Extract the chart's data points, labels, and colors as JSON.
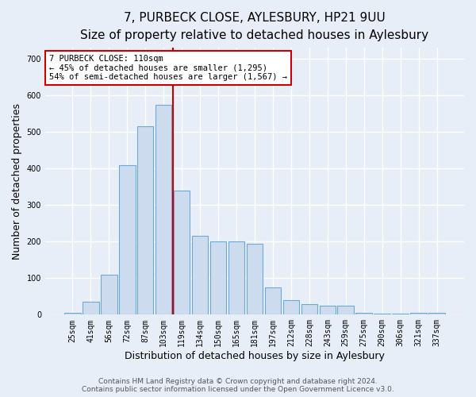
{
  "title_line1": "7, PURBECK CLOSE, AYLESBURY, HP21 9UU",
  "title_line2": "Size of property relative to detached houses in Aylesbury",
  "xlabel": "Distribution of detached houses by size in Aylesbury",
  "ylabel": "Number of detached properties",
  "categories": [
    "25sqm",
    "41sqm",
    "56sqm",
    "72sqm",
    "87sqm",
    "103sqm",
    "119sqm",
    "134sqm",
    "150sqm",
    "165sqm",
    "181sqm",
    "197sqm",
    "212sqm",
    "228sqm",
    "243sqm",
    "259sqm",
    "275sqm",
    "290sqm",
    "306sqm",
    "321sqm",
    "337sqm"
  ],
  "values": [
    5,
    35,
    110,
    410,
    515,
    575,
    340,
    215,
    200,
    200,
    195,
    75,
    40,
    30,
    25,
    25,
    5,
    2,
    2,
    5,
    5
  ],
  "bar_color": "#ccdcee",
  "bar_edge_color": "#6aaad4",
  "highlight_bar_index": 6,
  "vline_color": "#cc0000",
  "vline_x_index": 6,
  "annotation_text": "7 PURBECK CLOSE: 110sqm\n← 45% of detached houses are smaller (1,295)\n54% of semi-detached houses are larger (1,567) →",
  "annotation_box_edgecolor": "#cc0000",
  "footer_text": "Contains HM Land Registry data © Crown copyright and database right 2024.\nContains public sector information licensed under the Open Government Licence v3.0.",
  "ylim": [
    0,
    730
  ],
  "yticks": [
    0,
    100,
    200,
    300,
    400,
    500,
    600,
    700
  ],
  "background_color": "#e8eef8",
  "plot_background_color": "#e8eef8",
  "grid_color": "#ffffff",
  "title_fontsize": 11,
  "subtitle_fontsize": 9.5,
  "xlabel_fontsize": 9,
  "ylabel_fontsize": 9,
  "tick_fontsize": 7,
  "annotation_fontsize": 7.5,
  "footer_fontsize": 6.5,
  "bar_width": 0.9
}
